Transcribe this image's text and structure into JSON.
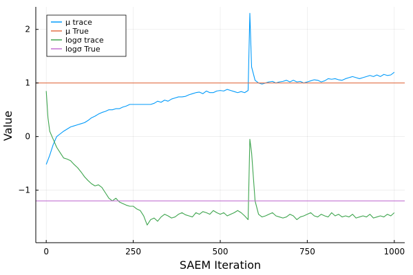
{
  "chart_data": {
    "type": "line",
    "xlabel": "SAEM Iteration",
    "ylabel": "Value",
    "xlim": [
      -30,
      1030
    ],
    "ylim": [
      -1.98,
      2.42
    ],
    "xticks": [
      {
        "value": 0,
        "label": "0"
      },
      {
        "value": 250,
        "label": "250"
      },
      {
        "value": 500,
        "label": "500"
      },
      {
        "value": 750,
        "label": "750"
      },
      {
        "value": 1000,
        "label": "1000"
      }
    ],
    "yticks": [
      {
        "value": -1,
        "label": "−1"
      },
      {
        "value": 0,
        "label": "0"
      },
      {
        "value": 1,
        "label": "1"
      },
      {
        "value": 2,
        "label": "2"
      }
    ],
    "grid": true,
    "legend_position": "top-left",
    "series": [
      {
        "name": "μ trace",
        "color": "#009AFA",
        "kind": "trace",
        "x": [
          0,
          10,
          20,
          30,
          40,
          50,
          60,
          70,
          80,
          90,
          100,
          110,
          120,
          130,
          140,
          150,
          160,
          170,
          180,
          190,
          200,
          210,
          220,
          230,
          240,
          250,
          260,
          270,
          280,
          290,
          300,
          310,
          320,
          330,
          340,
          350,
          360,
          370,
          380,
          390,
          400,
          410,
          420,
          430,
          440,
          450,
          460,
          470,
          480,
          490,
          500,
          510,
          520,
          530,
          540,
          550,
          560,
          570,
          580,
          585,
          590,
          600,
          610,
          620,
          630,
          640,
          650,
          660,
          670,
          680,
          690,
          700,
          710,
          720,
          730,
          740,
          750,
          760,
          770,
          780,
          790,
          800,
          810,
          820,
          830,
          840,
          850,
          860,
          870,
          880,
          890,
          900,
          910,
          920,
          930,
          940,
          950,
          960,
          970,
          980,
          990,
          1000
        ],
        "y": [
          -0.52,
          -0.35,
          -0.15,
          0.0,
          0.05,
          0.1,
          0.14,
          0.18,
          0.2,
          0.22,
          0.24,
          0.26,
          0.3,
          0.35,
          0.38,
          0.42,
          0.45,
          0.47,
          0.5,
          0.5,
          0.52,
          0.52,
          0.55,
          0.57,
          0.6,
          0.6,
          0.6,
          0.6,
          0.6,
          0.6,
          0.6,
          0.62,
          0.66,
          0.64,
          0.68,
          0.66,
          0.7,
          0.72,
          0.74,
          0.74,
          0.75,
          0.78,
          0.8,
          0.82,
          0.83,
          0.8,
          0.85,
          0.82,
          0.82,
          0.85,
          0.86,
          0.85,
          0.88,
          0.86,
          0.84,
          0.82,
          0.84,
          0.82,
          0.86,
          2.3,
          1.3,
          1.05,
          1.0,
          0.98,
          1.0,
          1.02,
          1.03,
          1.0,
          1.02,
          1.03,
          1.05,
          1.02,
          1.05,
          1.02,
          1.03,
          1.0,
          1.02,
          1.04,
          1.06,
          1.05,
          1.02,
          1.04,
          1.08,
          1.07,
          1.08,
          1.06,
          1.05,
          1.08,
          1.1,
          1.12,
          1.1,
          1.08,
          1.1,
          1.12,
          1.14,
          1.12,
          1.15,
          1.12,
          1.16,
          1.14,
          1.15,
          1.2
        ]
      },
      {
        "name": "μ True",
        "color": "#E26F46",
        "kind": "hline",
        "value": 1.0
      },
      {
        "name": "logσ trace",
        "color": "#3DA44D",
        "kind": "trace",
        "x": [
          0,
          5,
          10,
          20,
          30,
          40,
          50,
          60,
          70,
          80,
          90,
          100,
          110,
          120,
          130,
          140,
          150,
          160,
          170,
          180,
          190,
          200,
          210,
          220,
          230,
          240,
          250,
          260,
          270,
          280,
          290,
          300,
          310,
          320,
          330,
          340,
          350,
          360,
          370,
          380,
          390,
          400,
          410,
          420,
          430,
          440,
          450,
          460,
          470,
          480,
          490,
          500,
          510,
          520,
          530,
          540,
          550,
          560,
          570,
          580,
          585,
          590,
          600,
          610,
          620,
          630,
          640,
          650,
          660,
          670,
          680,
          690,
          700,
          710,
          720,
          730,
          740,
          750,
          760,
          770,
          780,
          790,
          800,
          810,
          820,
          830,
          840,
          850,
          860,
          870,
          880,
          890,
          900,
          910,
          920,
          930,
          940,
          950,
          960,
          970,
          980,
          990,
          1000
        ],
        "y": [
          0.85,
          0.35,
          0.1,
          -0.05,
          -0.2,
          -0.3,
          -0.4,
          -0.42,
          -0.45,
          -0.52,
          -0.58,
          -0.66,
          -0.75,
          -0.82,
          -0.88,
          -0.92,
          -0.9,
          -0.95,
          -1.05,
          -1.15,
          -1.2,
          -1.15,
          -1.22,
          -1.25,
          -1.28,
          -1.3,
          -1.3,
          -1.35,
          -1.38,
          -1.48,
          -1.65,
          -1.55,
          -1.52,
          -1.58,
          -1.5,
          -1.45,
          -1.48,
          -1.52,
          -1.5,
          -1.45,
          -1.42,
          -1.46,
          -1.48,
          -1.5,
          -1.42,
          -1.45,
          -1.4,
          -1.42,
          -1.45,
          -1.38,
          -1.42,
          -1.45,
          -1.42,
          -1.48,
          -1.45,
          -1.42,
          -1.38,
          -1.42,
          -1.48,
          -1.55,
          -0.05,
          -0.3,
          -1.2,
          -1.45,
          -1.5,
          -1.48,
          -1.45,
          -1.42,
          -1.48,
          -1.5,
          -1.52,
          -1.5,
          -1.45,
          -1.48,
          -1.55,
          -1.5,
          -1.48,
          -1.45,
          -1.42,
          -1.48,
          -1.5,
          -1.45,
          -1.48,
          -1.5,
          -1.42,
          -1.48,
          -1.45,
          -1.5,
          -1.48,
          -1.5,
          -1.45,
          -1.52,
          -1.5,
          -1.48,
          -1.5,
          -1.45,
          -1.52,
          -1.5,
          -1.48,
          -1.5,
          -1.45,
          -1.48,
          -1.42
        ]
      },
      {
        "name": "logσ True",
        "color": "#C271D2",
        "kind": "hline",
        "value": -1.2
      }
    ]
  }
}
